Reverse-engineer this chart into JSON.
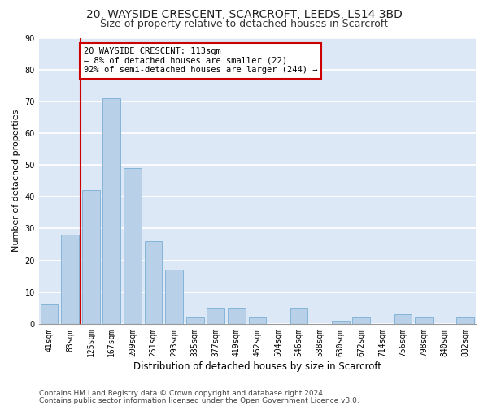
{
  "title": "20, WAYSIDE CRESCENT, SCARCROFT, LEEDS, LS14 3BD",
  "subtitle": "Size of property relative to detached houses in Scarcroft",
  "xlabel": "Distribution of detached houses by size in Scarcroft",
  "ylabel": "Number of detached properties",
  "categories": [
    "41sqm",
    "83sqm",
    "125sqm",
    "167sqm",
    "209sqm",
    "251sqm",
    "293sqm",
    "335sqm",
    "377sqm",
    "419sqm",
    "462sqm",
    "504sqm",
    "546sqm",
    "588sqm",
    "630sqm",
    "672sqm",
    "714sqm",
    "756sqm",
    "798sqm",
    "840sqm",
    "882sqm"
  ],
  "values": [
    6,
    28,
    42,
    71,
    49,
    26,
    17,
    2,
    5,
    5,
    2,
    0,
    5,
    0,
    1,
    2,
    0,
    3,
    2,
    0,
    2
  ],
  "bar_color": "#b8d0e8",
  "bar_edge_color": "#7aaed4",
  "vline_color": "#cc0000",
  "annotation_text": "20 WAYSIDE CRESCENT: 113sqm\n← 8% of detached houses are smaller (22)\n92% of semi-detached houses are larger (244) →",
  "annotation_box_facecolor": "#ffffff",
  "annotation_box_edgecolor": "#cc0000",
  "ylim": [
    0,
    90
  ],
  "yticks": [
    0,
    10,
    20,
    30,
    40,
    50,
    60,
    70,
    80,
    90
  ],
  "axes_facecolor": "#dce8f5",
  "fig_facecolor": "#ffffff",
  "grid_color": "#ffffff",
  "footer_line1": "Contains HM Land Registry data © Crown copyright and database right 2024.",
  "footer_line2": "Contains public sector information licensed under the Open Government Licence v3.0.",
  "title_fontsize": 10,
  "subtitle_fontsize": 9,
  "xlabel_fontsize": 8.5,
  "ylabel_fontsize": 8,
  "tick_fontsize": 7,
  "annotation_fontsize": 7.5,
  "footer_fontsize": 6.5
}
